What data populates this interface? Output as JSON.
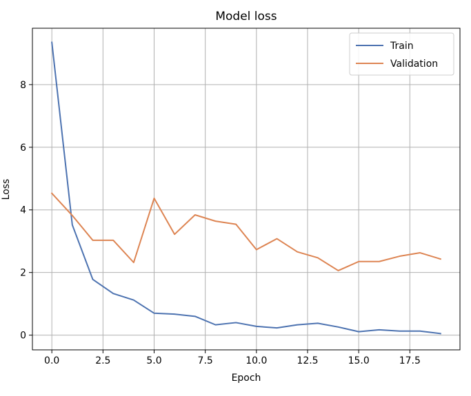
{
  "chart_data": {
    "type": "line",
    "title": "Model loss",
    "xlabel": "Epoch",
    "ylabel": "Loss",
    "xlim": [
      -0.95,
      19.95
    ],
    "ylim": [
      -0.47,
      9.8
    ],
    "xticks": [
      0.0,
      2.5,
      5.0,
      7.5,
      10.0,
      12.5,
      15.0,
      17.5
    ],
    "xtick_labels": [
      "0.0",
      "2.5",
      "5.0",
      "7.5",
      "10.0",
      "12.5",
      "15.0",
      "17.5"
    ],
    "yticks": [
      0,
      2,
      4,
      6,
      8
    ],
    "ytick_labels": [
      "0",
      "2",
      "4",
      "6",
      "8"
    ],
    "grid": true,
    "legend_position": "upper right",
    "x": [
      0,
      1,
      2,
      3,
      4,
      5,
      6,
      7,
      8,
      9,
      10,
      11,
      12,
      13,
      14,
      15,
      16,
      17,
      18,
      19
    ],
    "series": [
      {
        "name": "Train",
        "color": "#4c72b0",
        "values": [
          9.35,
          3.52,
          1.78,
          1.33,
          1.12,
          0.7,
          0.67,
          0.6,
          0.33,
          0.4,
          0.28,
          0.23,
          0.33,
          0.38,
          0.26,
          0.11,
          0.17,
          0.13,
          0.13,
          0.05
        ]
      },
      {
        "name": "Validation",
        "color": "#dd8452",
        "values": [
          4.53,
          3.82,
          3.03,
          3.03,
          2.32,
          4.37,
          3.22,
          3.84,
          3.64,
          3.54,
          2.73,
          3.08,
          2.66,
          2.47,
          2.06,
          2.35,
          2.35,
          2.52,
          2.63,
          2.43
        ]
      }
    ]
  }
}
